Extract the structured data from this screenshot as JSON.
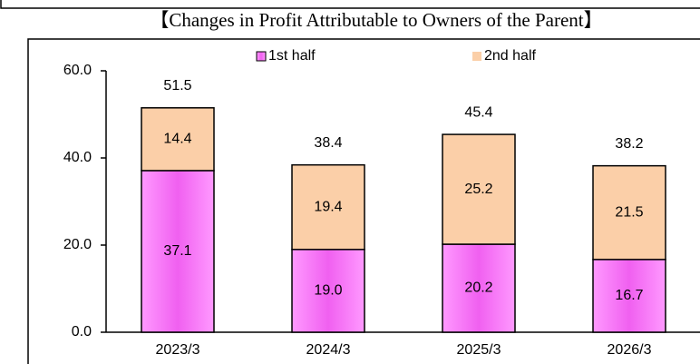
{
  "chart_data": {
    "type": "stacked-bar",
    "title": "【Changes in Profit Attributable to Owners of the Parent】",
    "categories": [
      "2023/3",
      "2024/3",
      "2025/3",
      "2026/3"
    ],
    "series": [
      {
        "name": "1st half",
        "color": "#f060f0",
        "values": [
          37.1,
          19.0,
          20.2,
          16.7
        ],
        "value_labels": [
          "37.1",
          "19.0",
          "20.2",
          "16.7"
        ]
      },
      {
        "name": "2nd half",
        "color": "#fbcfa8",
        "values": [
          14.4,
          19.4,
          25.2,
          21.5
        ],
        "value_labels": [
          "14.4",
          "19.4",
          "25.2",
          "21.5"
        ]
      }
    ],
    "totals": [
      51.5,
      38.4,
      45.4,
      38.2
    ],
    "ylim": [
      0,
      60
    ],
    "yticks": [
      {
        "value": 0,
        "label": "0.0"
      },
      {
        "value": 20,
        "label": "20.0"
      },
      {
        "value": 40,
        "label": "40.0"
      },
      {
        "value": 60,
        "label": "60.0"
      }
    ],
    "grid": false
  }
}
